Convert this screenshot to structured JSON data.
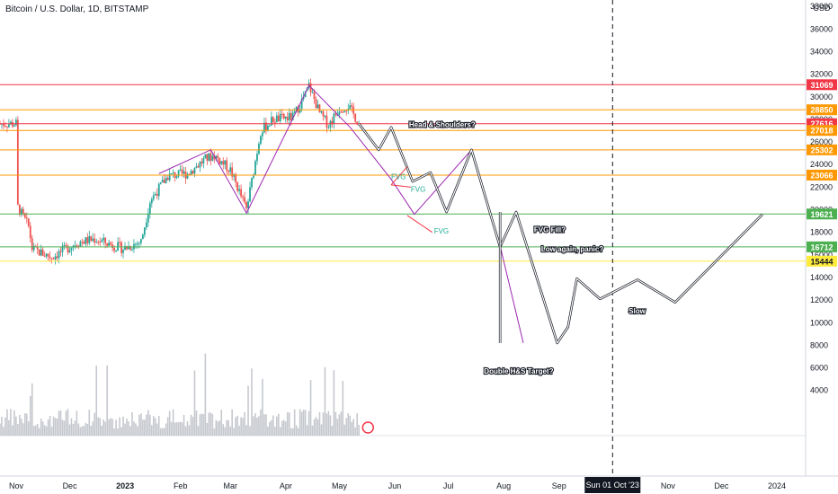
{
  "chart_title": "Bitcoin / U.S. Dollar, 1D, BITSTAMP",
  "chart_data": {
    "type": "candlestick",
    "currency": "USD",
    "ylim": [
      0,
      42000
    ],
    "y_ticks": [
      4000,
      6000,
      8000,
      10000,
      12000,
      14000,
      16000,
      18000,
      20000,
      22000,
      24000,
      26000,
      28000,
      30000,
      32000,
      34000,
      36000,
      38000
    ],
    "x_ticks": [
      "Nov",
      "Dec",
      "2023",
      "Feb",
      "Mar",
      "Apr",
      "May",
      "Jun",
      "Jul",
      "Aug",
      "Sep",
      "Oct",
      "Nov",
      "Dec",
      "2024"
    ],
    "crosshair_label": "Sun 01 Oct '23",
    "price_lines": [
      {
        "value": 31069,
        "label": "31069",
        "color": "#f23645"
      },
      {
        "value": 28850,
        "label": "28850",
        "color": "#ff9800"
      },
      {
        "value": 27616,
        "label": "27616",
        "color": "#f23645"
      },
      {
        "value": 27018,
        "label": "27018",
        "color": "#ff9800"
      },
      {
        "value": 25302,
        "label": "25302",
        "color": "#ff9800"
      },
      {
        "value": 23066,
        "label": "23066",
        "color": "#ff9800"
      },
      {
        "value": 19621,
        "label": "19621",
        "color": "#4caf50"
      },
      {
        "value": 16712,
        "label": "16712",
        "color": "#4caf50"
      },
      {
        "value": 15444,
        "label": "15444",
        "color": "#ffeb3b"
      }
    ],
    "price_path": [
      {
        "date": "2022-11-01",
        "price": 20500
      },
      {
        "date": "2022-11-08",
        "price": 18500
      },
      {
        "date": "2022-11-10",
        "price": 16500
      },
      {
        "date": "2022-11-21",
        "price": 15800
      },
      {
        "date": "2022-12-05",
        "price": 17100
      },
      {
        "date": "2022-12-15",
        "price": 17400
      },
      {
        "date": "2022-12-31",
        "price": 16550
      },
      {
        "date": "2023-01-10",
        "price": 17200
      },
      {
        "date": "2023-01-15",
        "price": 20800
      },
      {
        "date": "2023-01-25",
        "price": 23000
      },
      {
        "date": "2023-02-05",
        "price": 23200
      },
      {
        "date": "2023-02-15",
        "price": 24500
      },
      {
        "date": "2023-02-20",
        "price": 24800
      },
      {
        "date": "2023-03-01",
        "price": 23500
      },
      {
        "date": "2023-03-10",
        "price": 20000
      },
      {
        "date": "2023-03-18",
        "price": 27000
      },
      {
        "date": "2023-03-25",
        "price": 28000
      },
      {
        "date": "2023-04-05",
        "price": 28200
      },
      {
        "date": "2023-04-12",
        "price": 30200
      },
      {
        "date": "2023-04-14",
        "price": 31000
      },
      {
        "date": "2023-04-20",
        "price": 28500
      },
      {
        "date": "2023-04-25",
        "price": 27500
      },
      {
        "date": "2023-05-01",
        "price": 29000
      },
      {
        "date": "2023-05-06",
        "price": 29200
      },
      {
        "date": "2023-05-12",
        "price": 27616
      }
    ],
    "projection_path": [
      {
        "date": "2023-05-12",
        "price": 27600
      },
      {
        "date": "2023-05-23",
        "price": 25300
      },
      {
        "date": "2023-05-30",
        "price": 27300
      },
      {
        "date": "2023-06-11",
        "price": 22500
      },
      {
        "date": "2023-06-21",
        "price": 23300
      },
      {
        "date": "2023-06-30",
        "price": 19800
      },
      {
        "date": "2023-07-14",
        "price": 25300
      },
      {
        "date": "2023-07-30",
        "price": 16700
      },
      {
        "date": "2023-08-08",
        "price": 19800
      },
      {
        "date": "2023-08-31",
        "price": 8200
      },
      {
        "date": "2023-09-06",
        "price": 9600
      },
      {
        "date": "2023-09-11",
        "price": 13900
      },
      {
        "date": "2023-09-24",
        "price": 12100
      },
      {
        "date": "2023-10-15",
        "price": 13800
      },
      {
        "date": "2023-11-05",
        "price": 11800
      },
      {
        "date": "2023-12-24",
        "price": 19600
      }
    ],
    "target_line": {
      "date": "2023-07-30",
      "from": 19800,
      "to": 8200
    },
    "annotations": [
      {
        "text": "Head & Shoulders?",
        "date": "2023-06-09",
        "price": 27300
      },
      {
        "text": "FVG",
        "date": "2023-05-30",
        "price": 22700
      },
      {
        "text": "FVG",
        "date": "2023-06-10",
        "price": 21600
      },
      {
        "text": "FVG",
        "date": "2023-06-23",
        "price": 17900
      },
      {
        "text": "FVG Fill?",
        "date": "2023-08-18",
        "price": 18000
      },
      {
        "text": "Low again, panic?",
        "date": "2023-08-22",
        "price": 16300
      },
      {
        "text": "Slow",
        "date": "2023-10-10",
        "price": 10800
      },
      {
        "text": "Double H&S Target?",
        "date": "2023-07-21",
        "price": 5500
      }
    ]
  }
}
